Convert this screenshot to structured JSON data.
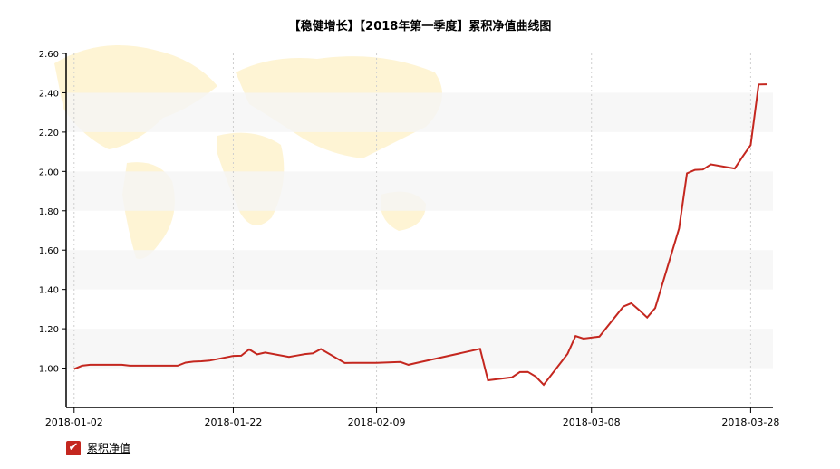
{
  "title": "【稳健增长】【2018年第一季度】累积净值曲线图",
  "legend": {
    "label": "累积净值",
    "checked": true
  },
  "colors": {
    "line": "#c4271f",
    "band": "#f5f5f5",
    "map": "#fdf0c2",
    "axis": "#000000"
  },
  "chart_data": {
    "type": "line",
    "title": "【稳健增长】【2018年第一季度】累积净值曲线图",
    "xlabel": "",
    "ylabel": "",
    "ylim": [
      0.8,
      2.6
    ],
    "yticks": [
      "2.60",
      "2.40",
      "2.20",
      "2.00",
      "1.80",
      "1.60",
      "1.40",
      "1.20",
      "1.00"
    ],
    "xticks": [
      "2018-01-02",
      "2018-01-22",
      "2018-02-09",
      "2018-03-08",
      "2018-03-28"
    ],
    "grid": "vertical dotted lines at x ticks, alternating horizontal bands",
    "series": [
      {
        "name": "累积净值",
        "x": [
          "2018-01-02",
          "2018-01-03",
          "2018-01-04",
          "2018-01-05",
          "2018-01-08",
          "2018-01-09",
          "2018-01-10",
          "2018-01-11",
          "2018-01-12",
          "2018-01-15",
          "2018-01-16",
          "2018-01-17",
          "2018-01-18",
          "2018-01-19",
          "2018-01-22",
          "2018-01-23",
          "2018-01-24",
          "2018-01-25",
          "2018-01-26",
          "2018-01-29",
          "2018-01-30",
          "2018-01-31",
          "2018-02-01",
          "2018-02-02",
          "2018-02-05",
          "2018-02-06",
          "2018-02-07",
          "2018-02-08",
          "2018-02-09",
          "2018-02-12",
          "2018-02-13",
          "2018-02-14",
          "2018-02-22",
          "2018-02-23",
          "2018-02-26",
          "2018-02-27",
          "2018-02-28",
          "2018-03-01",
          "2018-03-02",
          "2018-03-05",
          "2018-03-06",
          "2018-03-07",
          "2018-03-08",
          "2018-03-09",
          "2018-03-12",
          "2018-03-13",
          "2018-03-14",
          "2018-03-15",
          "2018-03-16",
          "2018-03-19",
          "2018-03-20",
          "2018-03-21",
          "2018-03-22",
          "2018-03-23",
          "2018-03-26",
          "2018-03-27",
          "2018-03-28",
          "2018-03-29",
          "2018-03-30"
        ],
        "values": [
          0.995,
          1.012,
          1.017,
          1.017,
          1.017,
          1.012,
          1.012,
          1.012,
          1.012,
          1.012,
          1.028,
          1.033,
          1.035,
          1.038,
          1.062,
          1.063,
          1.095,
          1.07,
          1.079,
          1.057,
          1.064,
          1.071,
          1.075,
          1.097,
          1.026,
          1.027,
          1.027,
          1.027,
          1.027,
          1.031,
          1.017,
          1.026,
          1.098,
          0.938,
          0.953,
          0.98,
          0.981,
          0.957,
          0.915,
          1.073,
          1.163,
          1.15,
          1.155,
          1.16,
          1.313,
          1.33,
          1.295,
          1.257,
          1.305,
          1.71,
          1.99,
          2.008,
          2.01,
          2.036,
          2.015,
          2.076,
          2.134,
          2.442,
          2.443
        ]
      }
    ]
  }
}
